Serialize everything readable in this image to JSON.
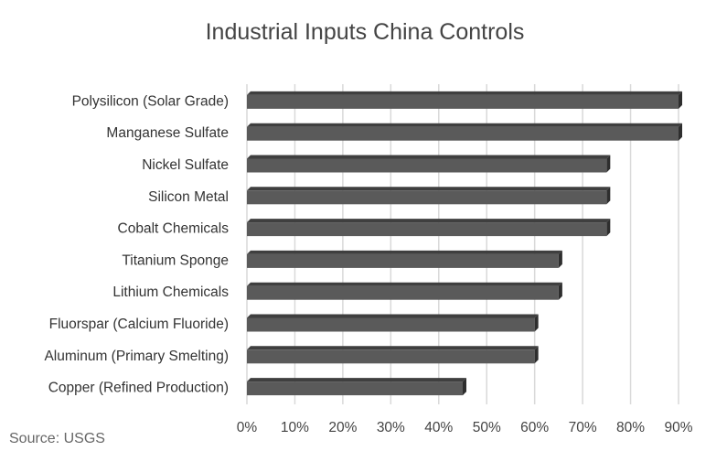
{
  "chart_data": {
    "type": "bar",
    "orientation": "horizontal",
    "title": "Industrial Inputs China Controls",
    "categories": [
      "Polysilicon (Solar Grade)",
      "Manganese Sulfate",
      "Nickel Sulfate",
      "Silicon Metal",
      "Cobalt Chemicals",
      "Titanium Sponge",
      "Lithium Chemicals",
      "Fluorspar (Calcium Fluoride)",
      "Aluminum (Primary Smelting)",
      "Copper (Refined Production)"
    ],
    "values": [
      90,
      90,
      75,
      75,
      75,
      65,
      65,
      60,
      60,
      45
    ],
    "xlim": [
      0,
      90
    ],
    "xticks": [
      "0%",
      "10%",
      "20%",
      "30%",
      "40%",
      "50%",
      "60%",
      "70%",
      "80%",
      "90%"
    ],
    "xlabel": "",
    "ylabel": "",
    "grid": true,
    "bar_color": "#5a5a5a",
    "grid_color": "#d9d9d9"
  },
  "source": "Source: USGS"
}
